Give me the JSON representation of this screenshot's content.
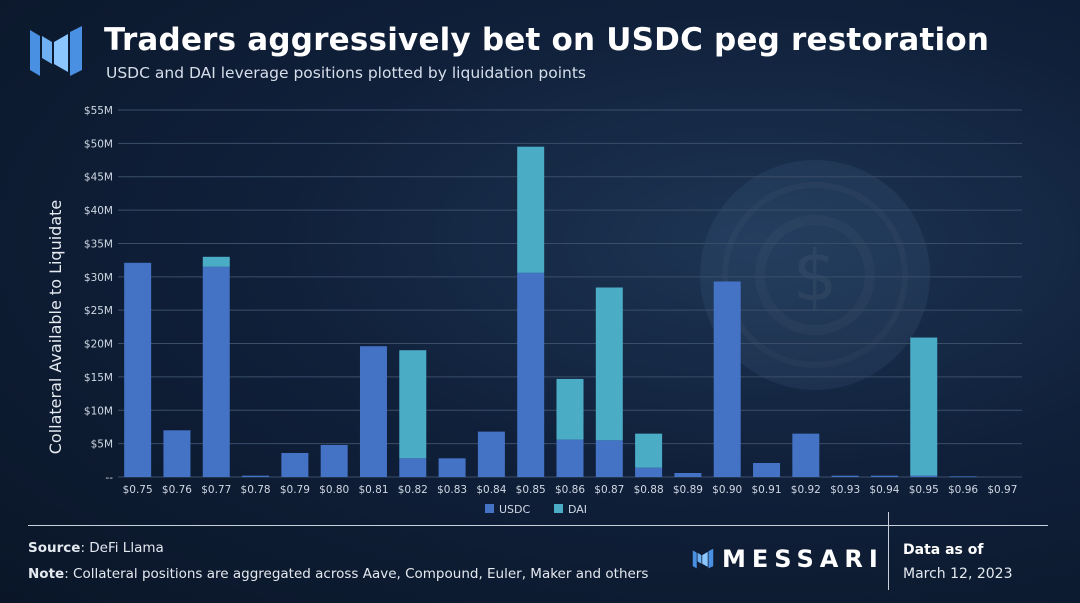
{
  "header": {
    "title": "Traders aggressively bet on USDC peg restoration",
    "subtitle": "USDC and DAI leverage positions plotted by liquidation points"
  },
  "colors": {
    "usdc": "#4472c4",
    "dai": "#4bacc6",
    "grid": "#3a4e6a",
    "logo": "#4a90e2"
  },
  "chart_data": {
    "type": "bar",
    "stacked": true,
    "title": "Traders aggressively bet on USDC peg restoration",
    "xlabel": "",
    "ylabel": "Collateral Available to Liquidate",
    "ylim": [
      0,
      55
    ],
    "y_unit": "$M",
    "y_ticks": [
      "--",
      "$5M",
      "$10M",
      "$15M",
      "$20M",
      "$25M",
      "$30M",
      "$35M",
      "$40M",
      "$45M",
      "$50M",
      "$55M"
    ],
    "categories": [
      "$0.75",
      "$0.76",
      "$0.77",
      "$0.78",
      "$0.79",
      "$0.80",
      "$0.81",
      "$0.82",
      "$0.83",
      "$0.84",
      "$0.85",
      "$0.86",
      "$0.87",
      "$0.88",
      "$0.89",
      "$0.90",
      "$0.91",
      "$0.92",
      "$0.93",
      "$0.94",
      "$0.95",
      "$0.96",
      "$0.97"
    ],
    "series": [
      {
        "name": "USDC",
        "values": [
          32.1,
          7.0,
          31.5,
          0.2,
          3.6,
          4.8,
          19.6,
          2.8,
          2.8,
          6.8,
          30.6,
          5.6,
          5.5,
          1.4,
          0.6,
          29.3,
          2.1,
          6.5,
          0.2,
          0.2,
          0.2,
          0.1,
          0
        ]
      },
      {
        "name": "DAI",
        "values": [
          0,
          0,
          1.5,
          0,
          0,
          0,
          0,
          16.2,
          0,
          0,
          18.9,
          9.1,
          22.9,
          5.1,
          0,
          0,
          0,
          0,
          0,
          0,
          20.7,
          0,
          0
        ]
      }
    ],
    "legend": "bottom-center"
  },
  "footer": {
    "source_label": "Source",
    "source_text": ": DeFi Llama",
    "note_label": "Note",
    "note_text": ": Collateral positions are aggregated across Aave, Compound, Euler, Maker and others",
    "brand": "MESSARI",
    "asof_label": "Data as of",
    "asof_date": "March 12, 2023"
  }
}
